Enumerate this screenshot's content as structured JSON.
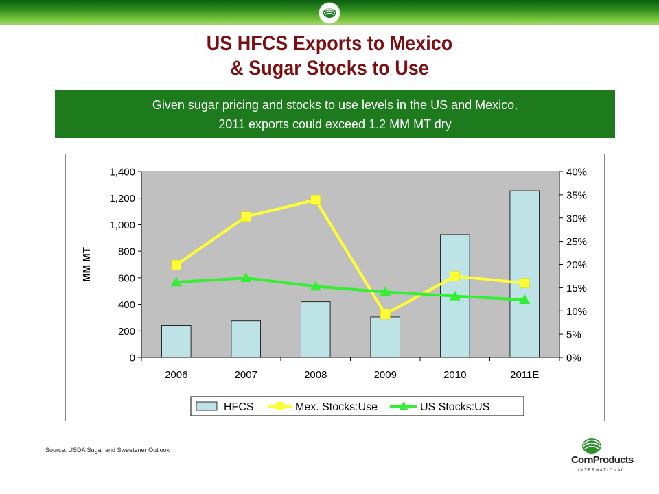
{
  "slide": {
    "title_line1": "US HFCS Exports to Mexico",
    "title_line2": "& Sugar Stocks to Use",
    "banner_line1": "Given sugar pricing and stocks to use levels in the US and Mexico,",
    "banner_line2": "2011 exports could exceed 1.2 MM MT dry",
    "source": "Source: USDA Sugar and Sweetener Outlook",
    "logo_text_main": "CornProducts",
    "logo_text_sub": "I N T E R N A T I O N A L"
  },
  "colors": {
    "title": "#7a0e10",
    "banner_bg": "#1d7a1d",
    "plot_bg": "#c0c0c0",
    "hfcs_bar": "#bde3e6",
    "mex_line": "#ffff33",
    "us_line": "#33ee33"
  },
  "chart_data": {
    "type": "bar",
    "categories": [
      "2006",
      "2007",
      "2008",
      "2009",
      "2010",
      "2011E"
    ],
    "ylabel": "MM MT",
    "ylim": [
      0,
      1400
    ],
    "y_ticks": [
      "0",
      "200",
      "400",
      "600",
      "800",
      "1,000",
      "1,200",
      "1,400"
    ],
    "y2lim": [
      0,
      40
    ],
    "y2_ticks": [
      "0%",
      "5%",
      "10%",
      "15%",
      "20%",
      "25%",
      "30%",
      "35%",
      "40%"
    ],
    "grid": false,
    "legend_position": "bottom",
    "series": [
      {
        "name": "HFCS",
        "type": "bar",
        "axis": "left",
        "values": [
          240,
          275,
          420,
          305,
          925,
          1255
        ]
      },
      {
        "name": "Mex. Stocks:Use",
        "type": "line",
        "axis": "right",
        "marker": "square",
        "values": [
          19.9,
          30.3,
          33.9,
          9.3,
          17.5,
          16.0
        ]
      },
      {
        "name": "US Stocks:US",
        "type": "line",
        "axis": "right",
        "marker": "triangle",
        "values": [
          16.2,
          17.1,
          15.3,
          14.1,
          13.2,
          12.4
        ]
      }
    ]
  }
}
